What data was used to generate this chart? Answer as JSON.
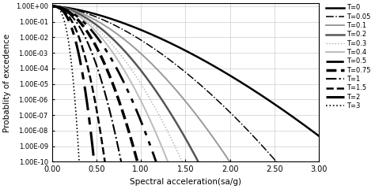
{
  "xlabel": "Spectral acceleration(sa/g)",
  "ylabel": "Probablity of excedence",
  "xtick_labels": [
    "0.00",
    "0.50",
    "1.00",
    "1.50",
    "2.00",
    "2.50",
    "3.00"
  ],
  "ytick_labels": [
    "1.00E+00",
    "1.00E-01",
    "1.00E-02",
    "1.00E-03",
    "1.00E-04",
    "1.00E-05",
    "1.00E-06",
    "1.00E-07",
    "1.00E-08",
    "1.00E-09",
    "1.00E-10"
  ],
  "curve_params": [
    {
      "label": "T=0",
      "color": "#000000",
      "lw": 1.8,
      "ls": "solid",
      "k": 3.5,
      "n": 1.55
    },
    {
      "label": "T=0.05",
      "color": "#000000",
      "lw": 1.1,
      "ls": "dashdot",
      "k": 5.0,
      "n": 1.65
    },
    {
      "label": "T=0.1",
      "color": "#999999",
      "lw": 1.4,
      "ls": "solid",
      "k": 7.0,
      "n": 1.72
    },
    {
      "label": "T=0.2",
      "color": "#555555",
      "lw": 1.8,
      "ls": "solid",
      "k": 9.5,
      "n": 1.78
    },
    {
      "label": "T=0.3",
      "color": "#aaaaaa",
      "lw": 1.0,
      "ls": "dotted",
      "k": 11.5,
      "n": 1.82
    },
    {
      "label": "T=0.4",
      "color": "#bbbbbb",
      "lw": 1.4,
      "ls": "solid",
      "k": 14.0,
      "n": 1.88
    },
    {
      "label": "T=0.5",
      "color": "#000000",
      "lw": 2.0,
      "ls": "solid",
      "k": 17.0,
      "n": 1.93,
      "dashes": [
        8,
        3,
        2,
        3,
        2,
        3
      ]
    },
    {
      "label": "T=0.75",
      "color": "#000000",
      "lw": 2.5,
      "ls": "dashed",
      "k": 25.0,
      "n": 2.05
    },
    {
      "label": "T=1",
      "color": "#000000",
      "lw": 1.5,
      "ls": "dashdot",
      "k": 40.0,
      "n": 2.2
    },
    {
      "label": "T=1.5",
      "color": "#000000",
      "lw": 1.8,
      "ls": "dashed",
      "k": 80.0,
      "n": 2.4
    },
    {
      "label": "T=2",
      "color": "#000000",
      "lw": 2.2,
      "ls": "dashed",
      "k": 160.0,
      "n": 2.6,
      "dashes": [
        10,
        3,
        3,
        3
      ]
    },
    {
      "label": "T=3",
      "color": "#000000",
      "lw": 1.2,
      "ls": "dotted",
      "k": 800.0,
      "n": 3.0
    }
  ]
}
